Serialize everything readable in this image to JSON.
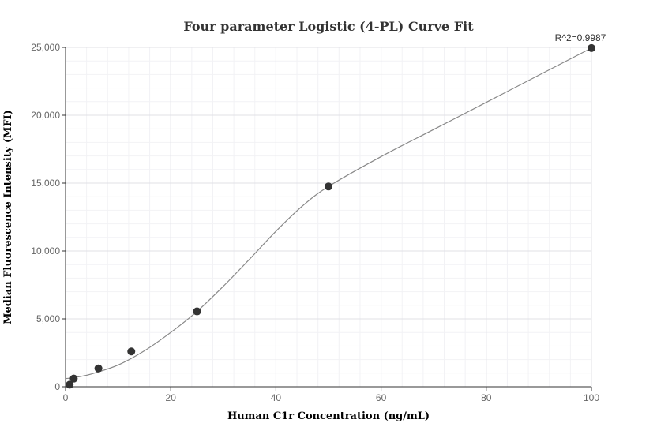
{
  "chart_data": {
    "type": "scatter",
    "title": "Four parameter Logistic (4-PL) Curve Fit",
    "xlabel": "Human C1r Concentration (ng/mL)",
    "ylabel": "Median Fluorescence Intensity (MFI)",
    "xlim": [
      0,
      100
    ],
    "ylim": [
      0,
      25000
    ],
    "x_ticks": [
      0,
      20,
      40,
      60,
      80,
      100
    ],
    "y_ticks": [
      0,
      5000,
      10000,
      15000,
      20000,
      25000
    ],
    "x_tick_labels": [
      "0",
      "20",
      "40",
      "60",
      "80",
      "100"
    ],
    "y_tick_labels": [
      "0",
      "5,000",
      "10,000",
      "15,000",
      "20,000",
      "25,000"
    ],
    "grid": true,
    "annotation": "R^2=0.9987",
    "series": [
      {
        "points": [
          {
            "x": 0.78,
            "y": 150
          },
          {
            "x": 1.56,
            "y": 600
          },
          {
            "x": 6.25,
            "y": 1350
          },
          {
            "x": 12.5,
            "y": 2600
          },
          {
            "x": 25,
            "y": 5550
          },
          {
            "x": 50,
            "y": 14750
          },
          {
            "x": 100,
            "y": 24950
          }
        ],
        "color": "#333333"
      }
    ],
    "fit_curve": {
      "color": "#888888",
      "points": [
        {
          "x": 0,
          "y": 600
        },
        {
          "x": 2,
          "y": 700
        },
        {
          "x": 5,
          "y": 950
        },
        {
          "x": 10,
          "y": 1600
        },
        {
          "x": 15,
          "y": 2650
        },
        {
          "x": 20,
          "y": 4000
        },
        {
          "x": 25,
          "y": 5550
        },
        {
          "x": 30,
          "y": 7400
        },
        {
          "x": 35,
          "y": 9400
        },
        {
          "x": 40,
          "y": 11450
        },
        {
          "x": 45,
          "y": 13300
        },
        {
          "x": 50,
          "y": 14750
        },
        {
          "x": 60,
          "y": 16950
        },
        {
          "x": 70,
          "y": 18950
        },
        {
          "x": 80,
          "y": 20950
        },
        {
          "x": 90,
          "y": 22950
        },
        {
          "x": 100,
          "y": 24950
        }
      ]
    }
  }
}
